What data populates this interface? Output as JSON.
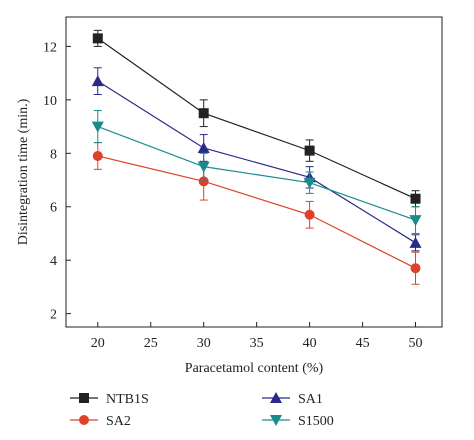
{
  "chart_data": {
    "type": "line",
    "title": "",
    "xlabel": "Paracetamol content (%)",
    "ylabel": "Disintegration time (min.)",
    "xlim": [
      17,
      52.5
    ],
    "ylim": [
      1.5,
      13.1
    ],
    "xticks": [
      20,
      25,
      30,
      35,
      40,
      45,
      50
    ],
    "yticks": [
      2,
      4,
      6,
      8,
      10,
      12
    ],
    "grid": false,
    "legend_position": "bottom",
    "x": [
      20,
      30,
      40,
      50
    ],
    "series": [
      {
        "name": "NTB1S",
        "color": "#222222",
        "marker": "square",
        "values": [
          12.3,
          9.5,
          8.1,
          6.3
        ],
        "errors": [
          0.3,
          0.5,
          0.4,
          0.3
        ]
      },
      {
        "name": "SA2",
        "color": "#e0402a",
        "marker": "circle",
        "values": [
          7.9,
          6.95,
          5.7,
          3.7
        ],
        "errors": [
          0.5,
          0.7,
          0.5,
          0.6
        ]
      },
      {
        "name": "SA1",
        "color": "#2a2a8a",
        "marker": "triangle-up",
        "values": [
          10.7,
          8.2,
          7.1,
          4.65
        ],
        "errors": [
          0.5,
          0.5,
          0.4,
          0.3
        ]
      },
      {
        "name": "S1500",
        "color": "#1a8a8a",
        "marker": "triangle-down",
        "values": [
          9.0,
          7.5,
          6.9,
          5.5
        ],
        "errors": [
          0.6,
          0.5,
          0.4,
          0.5
        ]
      }
    ]
  }
}
